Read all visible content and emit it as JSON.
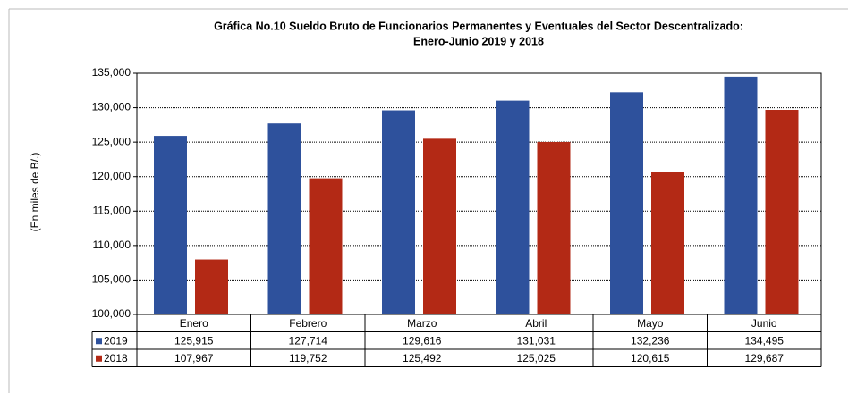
{
  "chart_data": {
    "type": "bar",
    "title": [
      "Gráfica No.10 Sueldo Bruto de Funcionarios Permanentes y Eventuales del Sector Descentralizado:",
      "Enero-Junio 2019 y 2018"
    ],
    "ylabel": "(En miles de B/.)",
    "categories": [
      "Enero",
      "Febrero",
      "Marzo",
      "Abril",
      "Mayo",
      "Junio"
    ],
    "series": [
      {
        "name": "2019",
        "color": "#2e519c",
        "values": [
          125915,
          127714,
          129616,
          131031,
          132236,
          134495
        ],
        "value_labels": [
          "125,915",
          "127,714",
          "129,616",
          "131,031",
          "132,236",
          "134,495"
        ]
      },
      {
        "name": "2018",
        "color": "#b32915",
        "values": [
          107967,
          119752,
          125492,
          125025,
          120615,
          129687
        ],
        "value_labels": [
          "107,967",
          "119,752",
          "125,492",
          "125,025",
          "120,615",
          "129,687"
        ]
      }
    ],
    "ylim": [
      100000,
      135000
    ],
    "yticks": [
      {
        "value": 100000,
        "label": "100,000"
      },
      {
        "value": 105000,
        "label": "105,000"
      },
      {
        "value": 110000,
        "label": "110,000"
      },
      {
        "value": 115000,
        "label": "115,000"
      },
      {
        "value": 120000,
        "label": "120,000"
      },
      {
        "value": 125000,
        "label": "125,000"
      },
      {
        "value": 130000,
        "label": "130,000"
      },
      {
        "value": 135000,
        "label": "135,000"
      }
    ],
    "grid": true
  }
}
